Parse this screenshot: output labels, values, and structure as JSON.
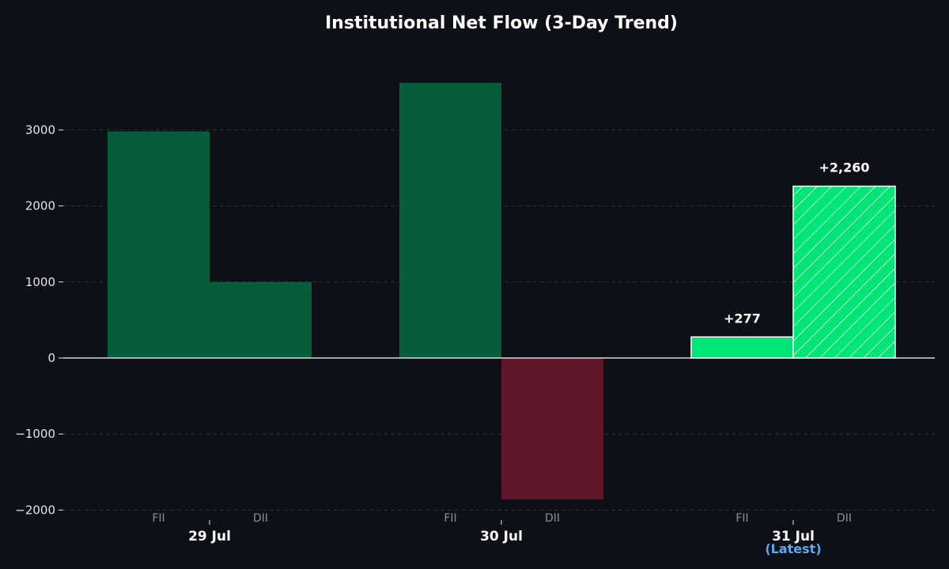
{
  "chart_data": {
    "type": "bar",
    "title": "Institutional Net Flow (3-Day Trend)",
    "xlabel": "",
    "ylabel": "",
    "ylim": [
      -2100,
      4100
    ],
    "yticks": [
      -2000,
      -1000,
      0,
      1000,
      2000,
      3000
    ],
    "ytick_labels": [
      "−2000",
      "−1000",
      "0",
      "1000",
      "2000",
      "3000"
    ],
    "grid": true,
    "categories": [
      "29 Jul",
      "30 Jul",
      "31 Jul"
    ],
    "latest_note": "(Latest)",
    "series": [
      {
        "name": "FII",
        "values": [
          2980,
          3620,
          277
        ]
      },
      {
        "name": "DII",
        "values": [
          1000,
          -1860,
          2260
        ]
      }
    ],
    "data_labels": {
      "31 Jul": {
        "FII": "+277",
        "DII": "+2,260"
      }
    }
  },
  "colors": {
    "background": "#0e1017",
    "positive_past": "#075c3a",
    "negative_past": "#5e1628",
    "positive_latest": "#00e676",
    "latest_note": "#5aa9f5",
    "grid": "#2c313b",
    "zero_line": "#ffffff",
    "hatch": "#ffffff"
  }
}
